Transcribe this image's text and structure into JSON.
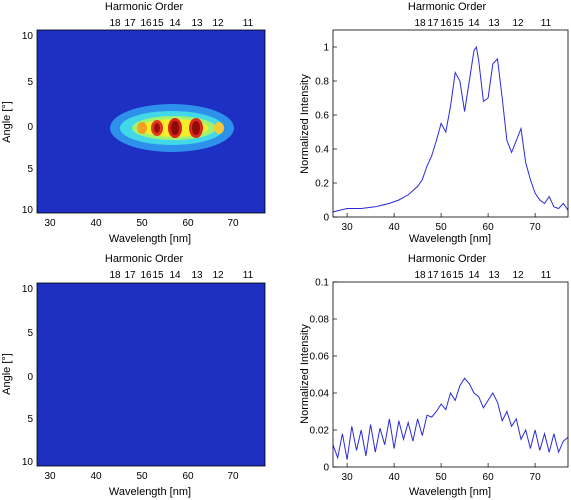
{
  "colors": {
    "line": "#2b2bdc",
    "axis": "#000000",
    "background": "#ffffff"
  },
  "chart_data": [
    {
      "type": "heatmap",
      "panel": "top-left",
      "top_label": "Harmonic Order",
      "xlabel": "Wavelength [nm]",
      "ylabel": "Angle [°]",
      "xlim": [
        27,
        77
      ],
      "ylim": [
        -10.5,
        10.5
      ],
      "x_ticks": [
        "30",
        "40",
        "50",
        "60",
        "70"
      ],
      "y_ticks": [
        "10",
        "5",
        "0",
        "5",
        "10"
      ],
      "harmonic_ticks": [
        "18",
        "17",
        "16",
        "15",
        "14",
        "13",
        "12",
        "11"
      ],
      "colormap": "jet",
      "peaks": [
        {
          "harmonic": 16,
          "wavelength": 50.0,
          "intensity": 0.45
        },
        {
          "harmonic": 15,
          "wavelength": 53.3,
          "intensity": 0.85
        },
        {
          "harmonic": 14,
          "wavelength": 57.4,
          "intensity": 1.0
        },
        {
          "harmonic": 13,
          "wavelength": 61.8,
          "intensity": 0.95
        },
        {
          "harmonic": 12,
          "wavelength": 66.9,
          "intensity": 0.5
        }
      ],
      "angular_spread": 1.2
    },
    {
      "type": "line",
      "panel": "top-right",
      "top_label": "Harmonic Order",
      "xlabel": "Wavelength [nm]",
      "ylabel": "Normalized Intensity",
      "xlim": [
        27,
        77
      ],
      "ylim": [
        0,
        1.1
      ],
      "x_ticks": [
        "30",
        "40",
        "50",
        "60",
        "70"
      ],
      "y_ticks": [
        "0",
        "0.2",
        "0.4",
        "0.6",
        "0.8",
        "1"
      ],
      "harmonic_ticks": [
        "18",
        "17",
        "16",
        "15",
        "14",
        "13",
        "12",
        "11"
      ],
      "series": [
        {
          "x": [
            27,
            30,
            33,
            36,
            39,
            41,
            43,
            45,
            46,
            47,
            48,
            49,
            50,
            51,
            52,
            53,
            54,
            55,
            56,
            57,
            57.5,
            58,
            59,
            60,
            61,
            62,
            63,
            64,
            65,
            66,
            67,
            68,
            69,
            70,
            71,
            72,
            73,
            74,
            75,
            76,
            77
          ],
          "y": [
            0.03,
            0.05,
            0.05,
            0.06,
            0.08,
            0.1,
            0.13,
            0.18,
            0.22,
            0.3,
            0.36,
            0.45,
            0.55,
            0.5,
            0.65,
            0.85,
            0.8,
            0.62,
            0.8,
            0.98,
            1.0,
            0.92,
            0.68,
            0.7,
            0.9,
            0.93,
            0.7,
            0.45,
            0.38,
            0.45,
            0.52,
            0.32,
            0.22,
            0.14,
            0.1,
            0.08,
            0.12,
            0.06,
            0.05,
            0.08,
            0.04
          ]
        }
      ]
    },
    {
      "type": "heatmap",
      "panel": "bottom-left",
      "top_label": "Harmonic Order",
      "xlabel": "Wavelength [nm]",
      "ylabel": "Angle [°]",
      "xlim": [
        27,
        77
      ],
      "ylim": [
        -10.5,
        10.5
      ],
      "x_ticks": [
        "30",
        "40",
        "50",
        "60",
        "70"
      ],
      "y_ticks": [
        "10",
        "5",
        "0",
        "5",
        "10"
      ],
      "harmonic_ticks": [
        "18",
        "17",
        "16",
        "15",
        "14",
        "13",
        "12",
        "11"
      ],
      "colormap": "jet",
      "peaks": [],
      "angular_spread": 0
    },
    {
      "type": "line",
      "panel": "bottom-right",
      "top_label": "Harmonic Order",
      "xlabel": "Wavelength [nm]",
      "ylabel": "Normalized Intensity",
      "xlim": [
        27,
        77
      ],
      "ylim": [
        0,
        0.1
      ],
      "x_ticks": [
        "30",
        "40",
        "50",
        "60",
        "70"
      ],
      "y_ticks": [
        "0",
        "0.02",
        "0.04",
        "0.06",
        "0.08",
        "0.1"
      ],
      "harmonic_ticks": [
        "18",
        "17",
        "16",
        "15",
        "14",
        "13",
        "12",
        "11"
      ],
      "series": [
        {
          "x": [
            27,
            28,
            29,
            30,
            31,
            32,
            33,
            34,
            35,
            36,
            37,
            38,
            39,
            40,
            41,
            42,
            43,
            44,
            45,
            46,
            47,
            48,
            49,
            50,
            51,
            52,
            53,
            54,
            55,
            56,
            57,
            58,
            59,
            60,
            61,
            62,
            63,
            64,
            65,
            66,
            67,
            68,
            69,
            70,
            71,
            72,
            73,
            74,
            75,
            76,
            77
          ],
          "y": [
            0.012,
            0.005,
            0.018,
            0.004,
            0.022,
            0.009,
            0.02,
            0.006,
            0.023,
            0.008,
            0.021,
            0.012,
            0.026,
            0.01,
            0.025,
            0.015,
            0.024,
            0.014,
            0.026,
            0.017,
            0.028,
            0.027,
            0.03,
            0.034,
            0.031,
            0.04,
            0.036,
            0.044,
            0.048,
            0.045,
            0.04,
            0.038,
            0.032,
            0.036,
            0.04,
            0.035,
            0.025,
            0.03,
            0.022,
            0.026,
            0.015,
            0.02,
            0.01,
            0.02,
            0.009,
            0.018,
            0.008,
            0.018,
            0.008,
            0.014,
            0.016
          ]
        }
      ]
    }
  ]
}
